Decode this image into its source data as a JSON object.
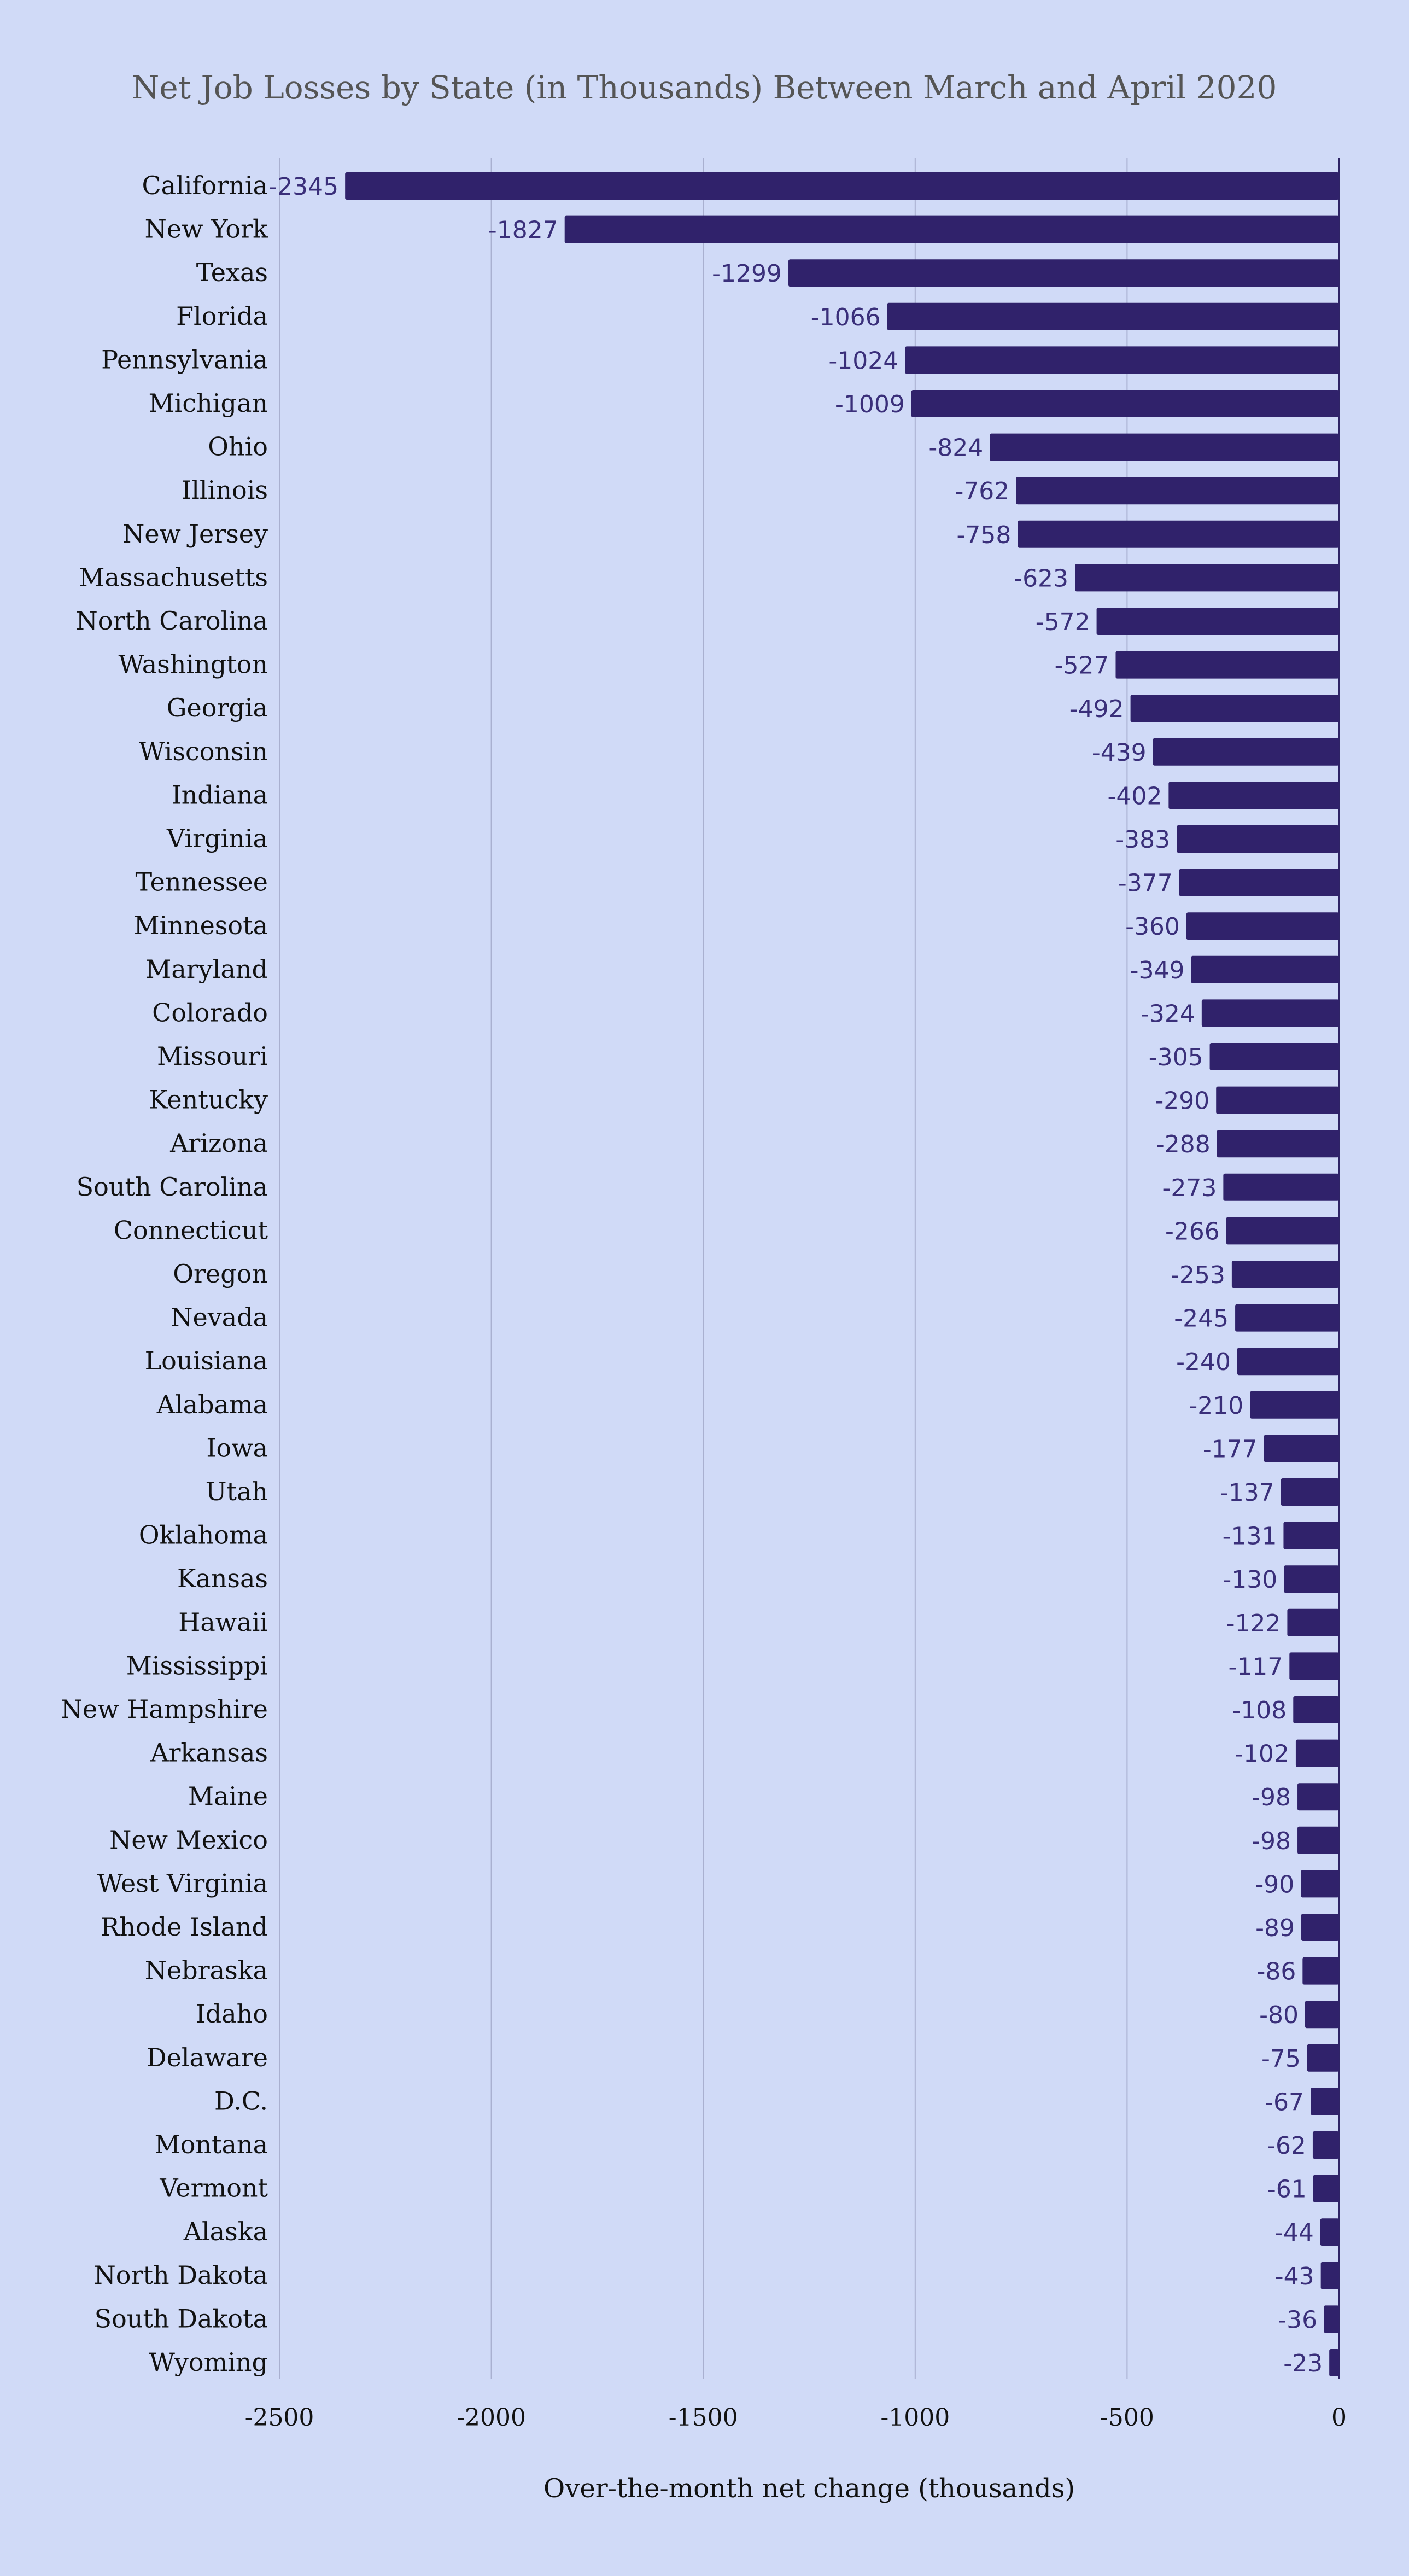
{
  "chart_data": {
    "type": "bar",
    "orientation": "horizontal",
    "title": "Net Job Losses by State (in Thousands) Between March and April 2020",
    "xlabel": "Over-the-month net change (thousands)",
    "ylabel": "",
    "xlim": [
      -2500,
      0
    ],
    "xticks": [
      -2500,
      -2000,
      -1500,
      -1000,
      -500,
      0
    ],
    "xtick_labels": [
      "-2500",
      "-2000",
      "-1500",
      "-1000",
      "-500",
      "0"
    ],
    "grid": true,
    "legend": "none",
    "bar_color": "#30226b",
    "categories": [
      "California",
      "New York",
      "Texas",
      "Florida",
      "Pennsylvania",
      "Michigan",
      "Ohio",
      "Illinois",
      "New Jersey",
      "Massachusetts",
      "North Carolina",
      "Washington",
      "Georgia",
      "Wisconsin",
      "Indiana",
      "Virginia",
      "Tennessee",
      "Minnesota",
      "Maryland",
      "Colorado",
      "Missouri",
      "Kentucky",
      "Arizona",
      "South Carolina",
      "Connecticut",
      "Oregon",
      "Nevada",
      "Louisiana",
      "Alabama",
      "Iowa",
      "Utah",
      "Oklahoma",
      "Kansas",
      "Hawaii",
      "Mississippi",
      "New Hampshire",
      "Arkansas",
      "Maine",
      "New Mexico",
      "West Virginia",
      "Rhode Island",
      "Nebraska",
      "Idaho",
      "Delaware",
      "D.C.",
      "Montana",
      "Vermont",
      "Alaska",
      "North Dakota",
      "South Dakota",
      "Wyoming"
    ],
    "values": [
      -2345,
      -1827,
      -1299,
      -1066,
      -1024,
      -1009,
      -824,
      -762,
      -758,
      -623,
      -572,
      -527,
      -492,
      -439,
      -402,
      -383,
      -377,
      -360,
      -349,
      -324,
      -305,
      -290,
      -288,
      -273,
      -266,
      -253,
      -245,
      -240,
      -210,
      -177,
      -137,
      -131,
      -130,
      -122,
      -117,
      -108,
      -102,
      -98,
      -98,
      -90,
      -89,
      -86,
      -80,
      -75,
      -67,
      -62,
      -61,
      -44,
      -43,
      -36,
      -23
    ]
  }
}
